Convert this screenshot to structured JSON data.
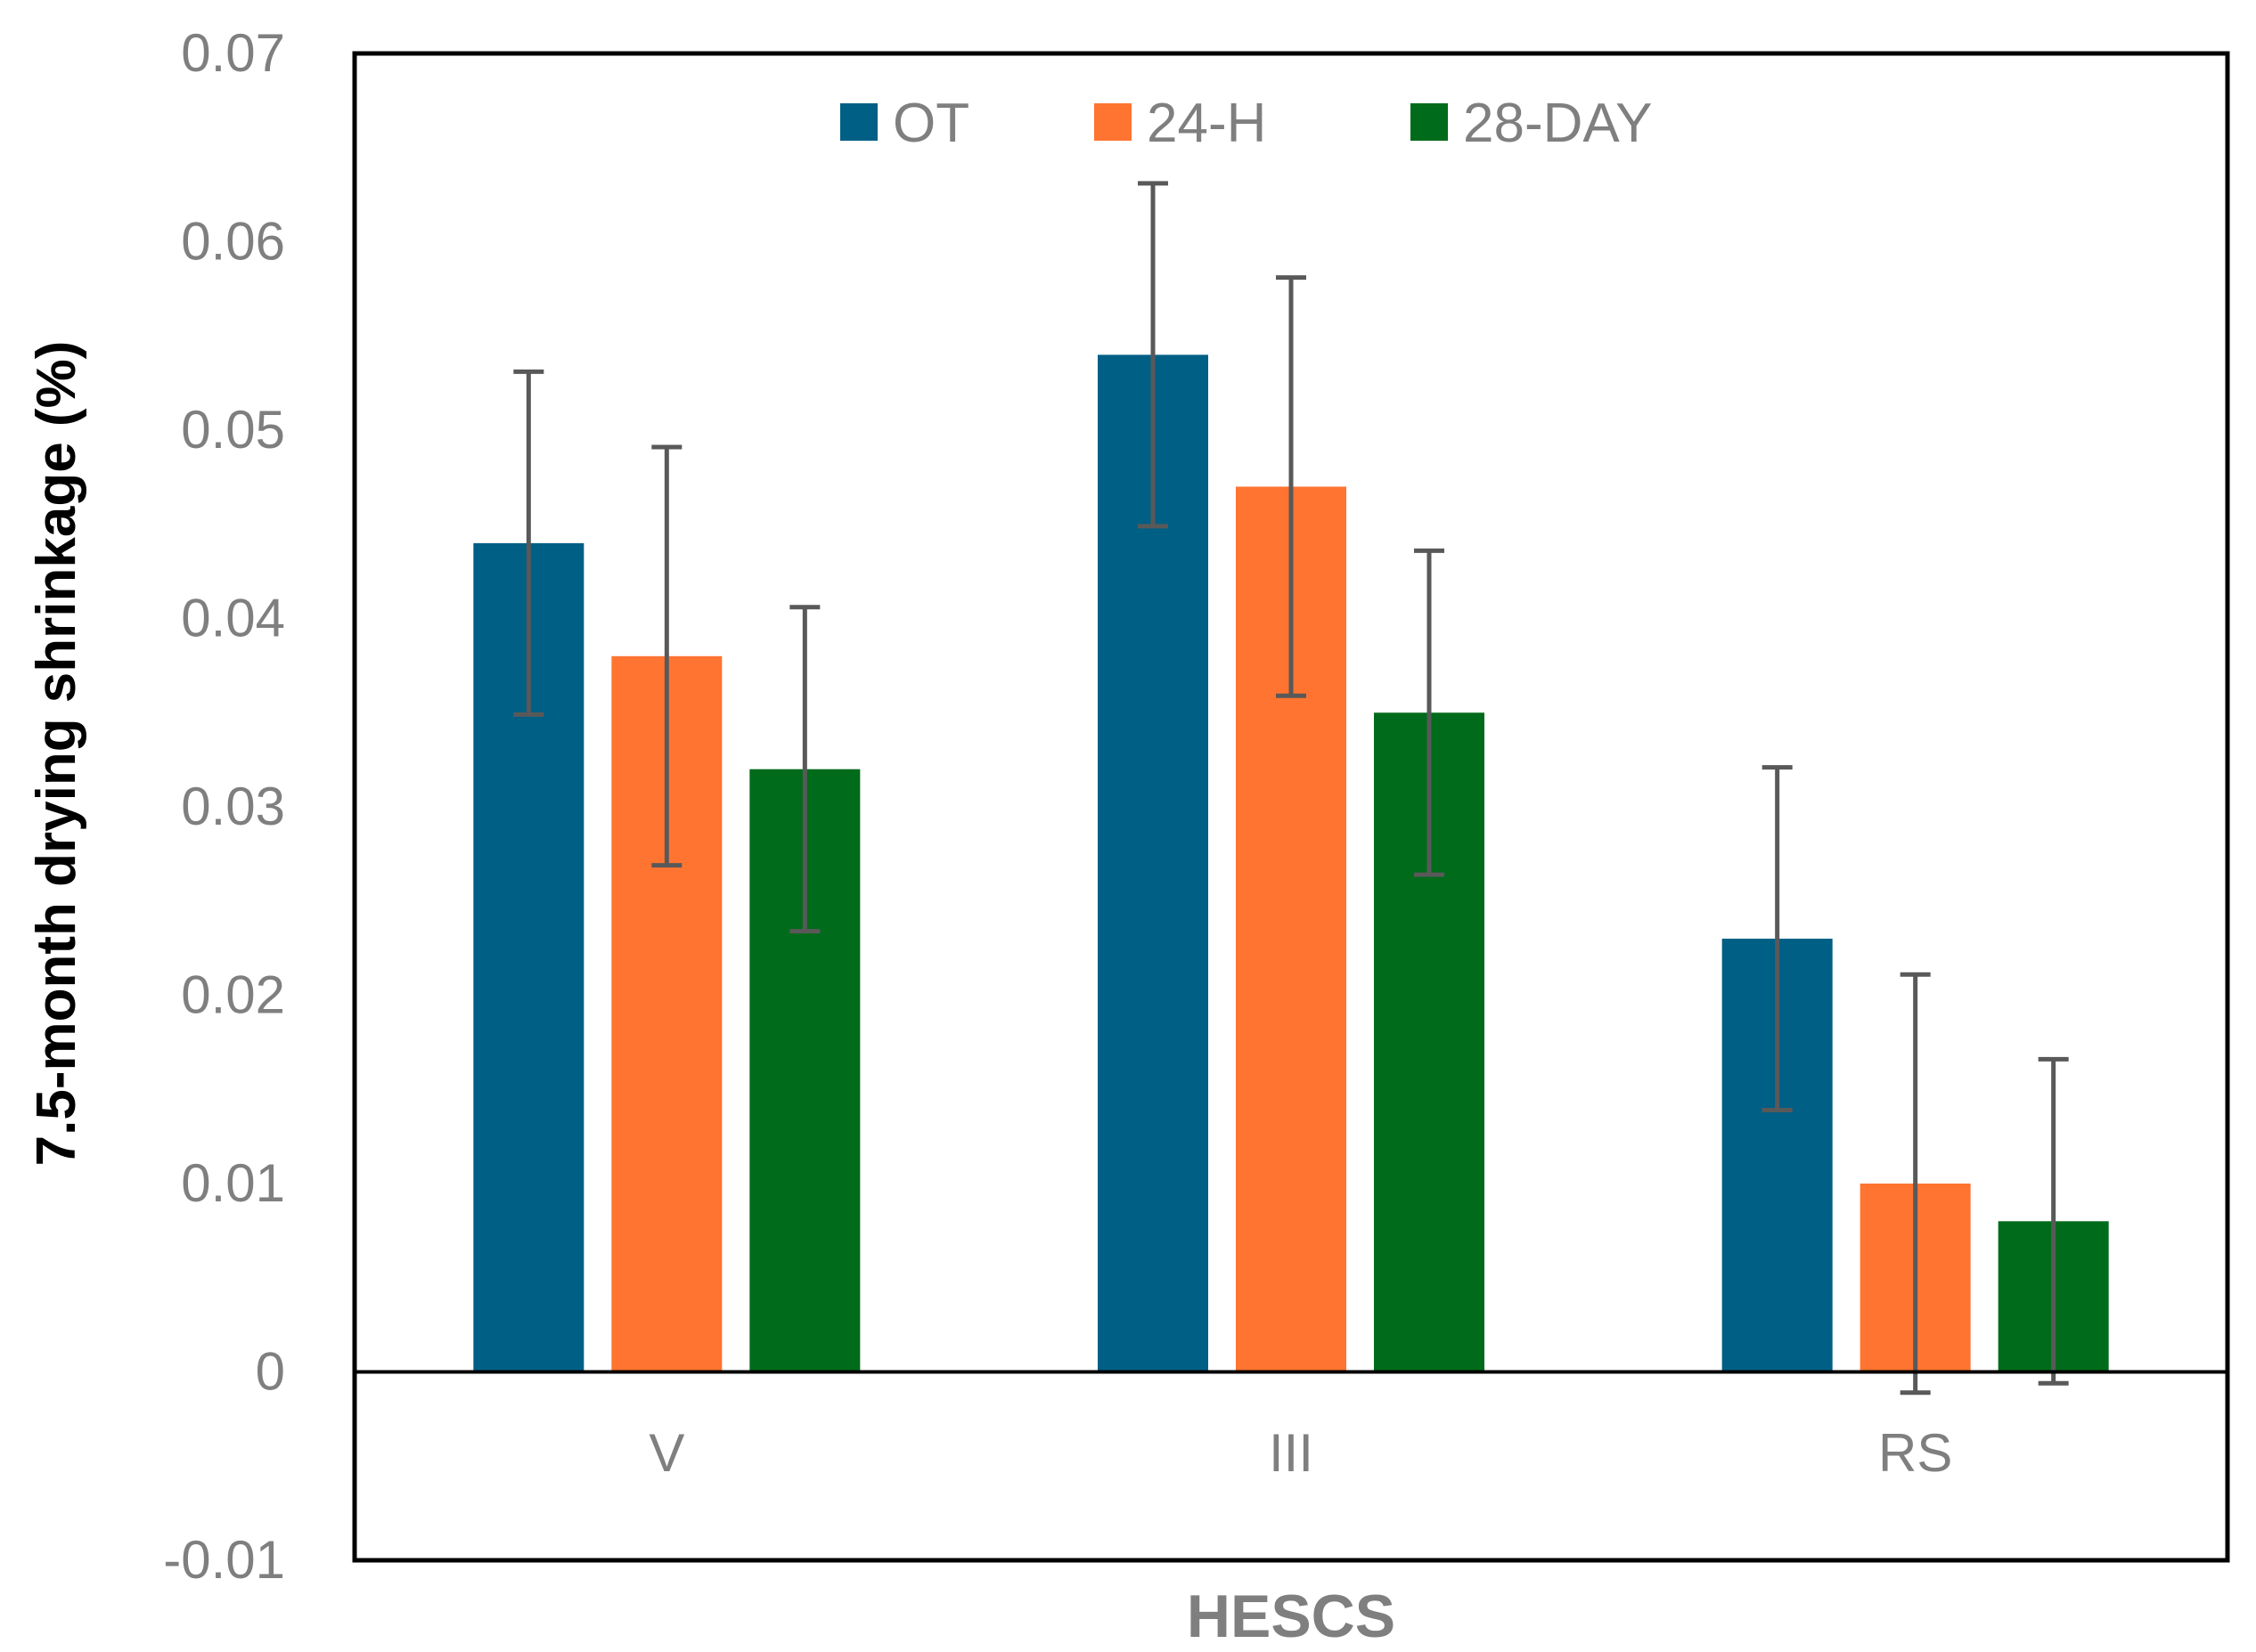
{
  "chart_data": {
    "type": "bar",
    "title": "",
    "xlabel": "HESCS",
    "ylabel": "7.5-month drying shrinkage (%)",
    "categories": [
      "V",
      "III",
      "RS"
    ],
    "ylim": [
      -0.01,
      0.07
    ],
    "yticks": [
      "0.07",
      "0.06",
      "0.05",
      "0.04",
      "0.03",
      "0.02",
      "0.01",
      "0",
      "-0.01"
    ],
    "ytick_values": [
      0.07,
      0.06,
      0.05,
      0.04,
      0.03,
      0.02,
      0.01,
      0,
      -0.01
    ],
    "grid": false,
    "legend_position": "top-center",
    "series": [
      {
        "name": "OT",
        "color": "#005f85",
        "values": [
          0.044,
          0.054,
          0.023
        ],
        "errors": [
          0.0091,
          0.0091,
          0.0091
        ]
      },
      {
        "name": "24-H",
        "color": "#ff7430",
        "values": [
          0.038,
          0.047,
          0.01
        ],
        "errors": [
          0.0111,
          0.0111,
          0.0111
        ]
      },
      {
        "name": "28-DAY",
        "color": "#006b1a",
        "values": [
          0.032,
          0.035,
          0.008
        ],
        "errors": [
          0.0086,
          0.0086,
          0.0086
        ]
      }
    ],
    "error_bar_color": "#595959"
  }
}
